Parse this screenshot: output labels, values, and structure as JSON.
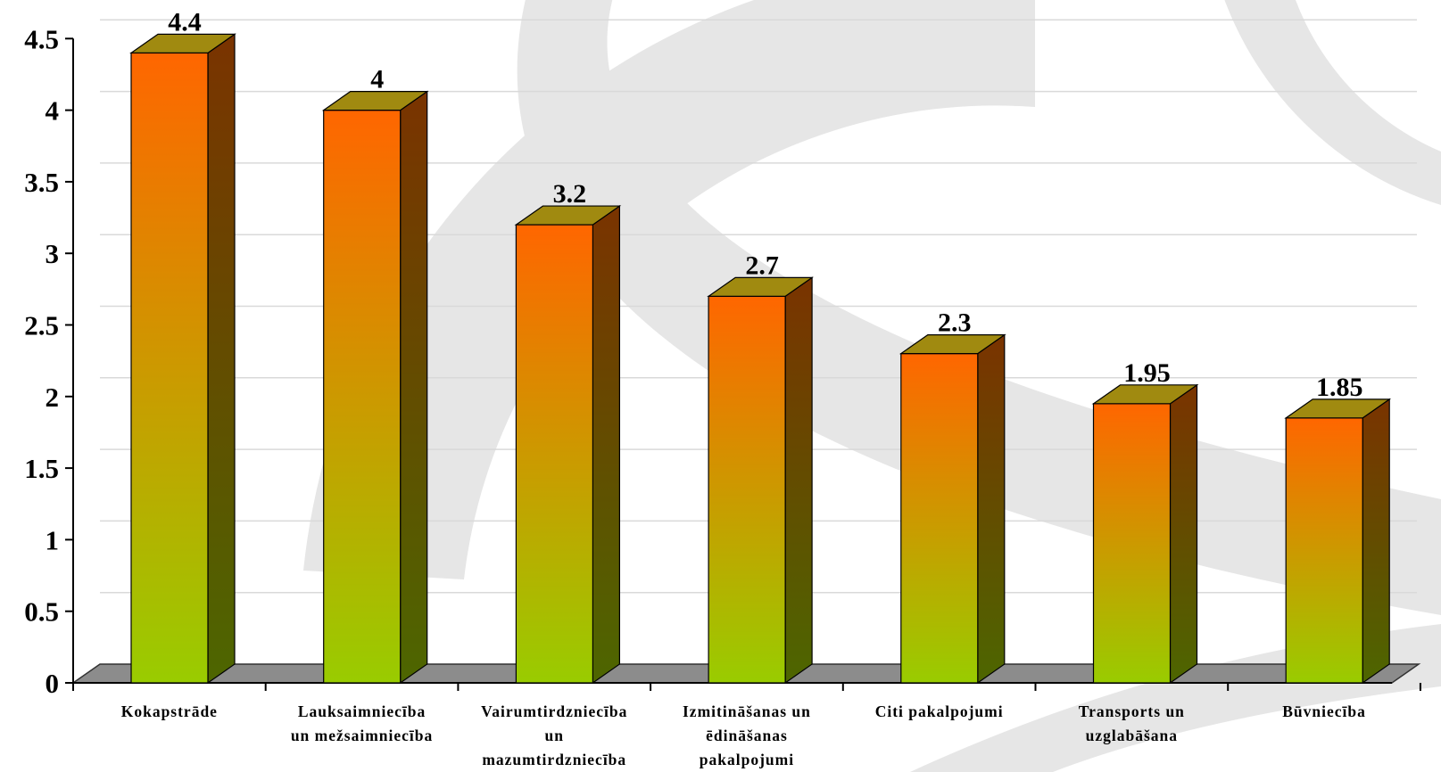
{
  "chart_data": {
    "type": "bar",
    "style": "3d-column",
    "title": "",
    "xlabel": "",
    "ylabel": "",
    "ylim": [
      0,
      4.5
    ],
    "ytick_step": 0.5,
    "yticks": [
      "0",
      "0.5",
      "1",
      "1.5",
      "2",
      "2.5",
      "3",
      "3.5",
      "4",
      "4.5"
    ],
    "grid": true,
    "legend": "none",
    "categories": [
      [
        "Kokapstrāde"
      ],
      [
        "Lauksaimniecība",
        "un mežsaimniecība"
      ],
      [
        "Vairumtirdzniecība",
        "un",
        "mazumtirdzniecība"
      ],
      [
        "Izmitināšanas un",
        "ēdināšanas",
        "pakalpojumi"
      ],
      [
        "Citi pakalpojumi"
      ],
      [
        "Transports un",
        "uzglabāšana"
      ],
      [
        "Būvniecība"
      ]
    ],
    "values": [
      4.4,
      4,
      3.2,
      2.7,
      2.3,
      1.95,
      1.85
    ],
    "value_labels": [
      "4.4",
      "4",
      "3.2",
      "2.7",
      "2.3",
      "1.95",
      "1.85"
    ]
  },
  "colors": {
    "bar_top": "#ff6600",
    "bar_bottom": "#99cc00",
    "bar_side_top": "#7a3300",
    "bar_side_bottom": "#4d6600",
    "bar_cap": "#a08a10",
    "floor": "#8c8c8c",
    "gridline": "#d9d9d9",
    "background_arc": "#e6e6e6"
  }
}
